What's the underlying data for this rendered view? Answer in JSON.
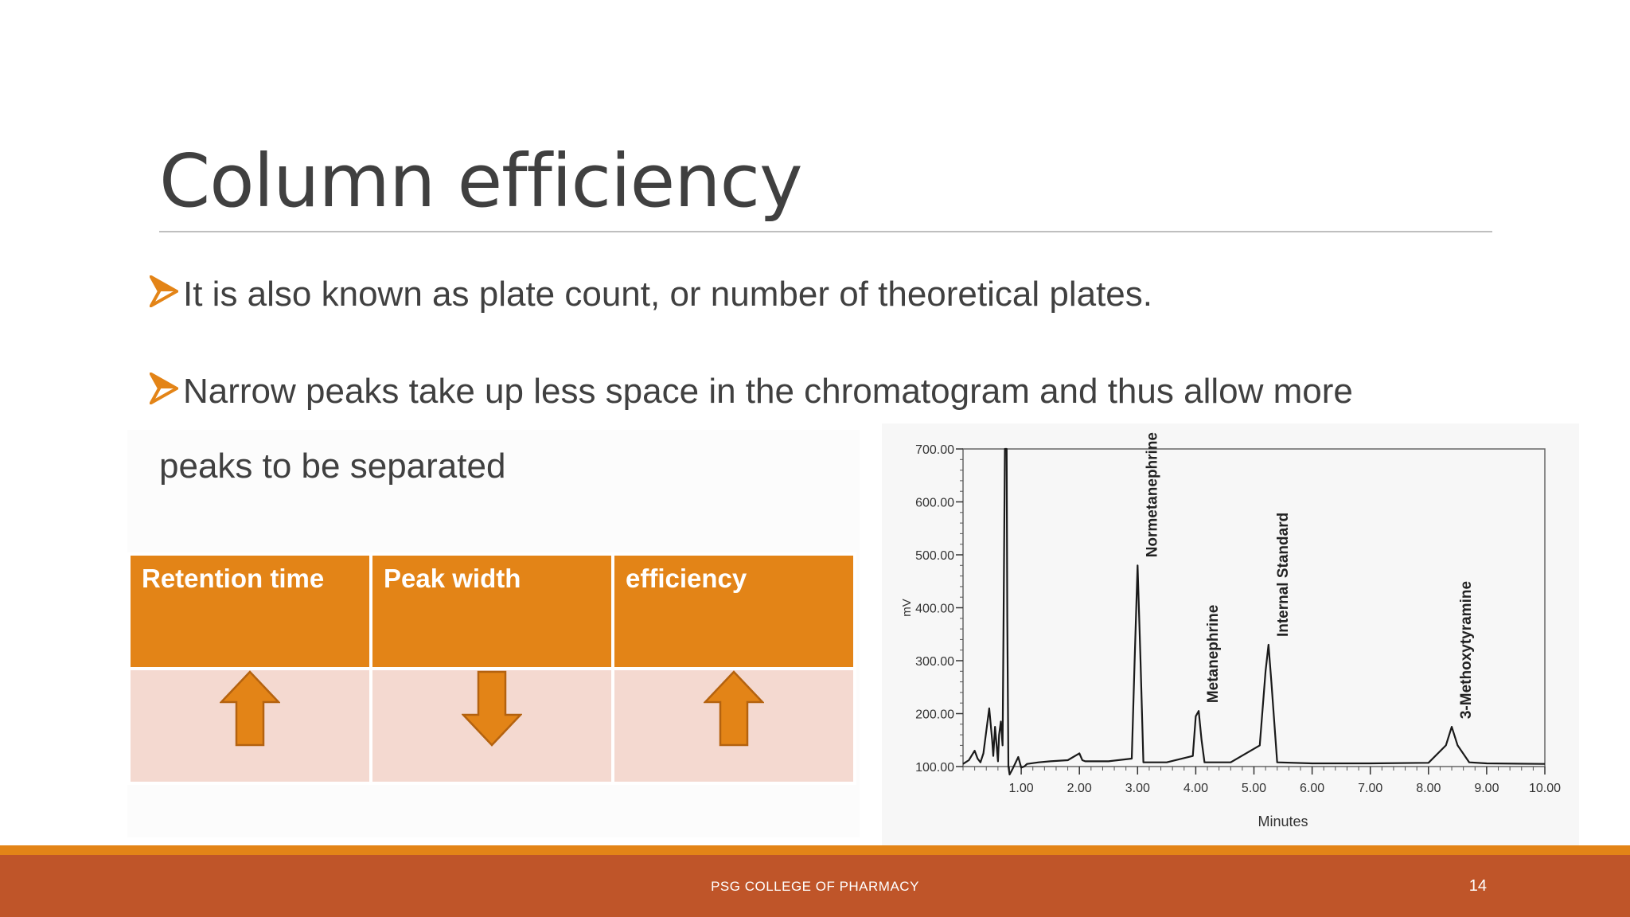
{
  "slide": {
    "title": "Column efficiency",
    "bullets": [
      "It is also known as plate count, or number of theoretical plates.",
      "Narrow peaks take up less space in the chromatogram and thus allow more"
    ],
    "bullet_continuation": "peaks to be separated",
    "accent_color": "#e38417",
    "footer_color": "#bf5529"
  },
  "table": {
    "headers": [
      "Retention time",
      "Peak width",
      "efficiency"
    ],
    "directions": [
      "up-arrow-icon",
      "down-arrow-icon",
      "up-arrow-icon"
    ]
  },
  "chart_data": {
    "type": "line",
    "xlabel": "Minutes",
    "ylabel": "mV",
    "xlim": [
      0,
      10
    ],
    "ylim": [
      100,
      700
    ],
    "x_ticks": [
      "1.00",
      "2.00",
      "3.00",
      "4.00",
      "5.00",
      "6.00",
      "7.00",
      "8.00",
      "9.00",
      "10.00"
    ],
    "y_ticks": [
      "100.00",
      "200.00",
      "300.00",
      "400.00",
      "500.00",
      "600.00",
      "700.00"
    ],
    "peak_labels": [
      {
        "label": "Normetanephrine",
        "x": 3.0,
        "y": 480
      },
      {
        "label": "Metanephrine",
        "x": 4.05,
        "y": 205
      },
      {
        "label": "Internal Standard",
        "x": 5.25,
        "y": 330
      },
      {
        "label": "3-Methoxytyramine",
        "x": 8.4,
        "y": 175
      }
    ],
    "series": [
      {
        "x": [
          0,
          0.1,
          0.2,
          0.25,
          0.3,
          0.35,
          0.45,
          0.5,
          0.52,
          0.55,
          0.6,
          0.62,
          0.65,
          0.68,
          0.72,
          0.74,
          0.75,
          0.76,
          0.78,
          0.8,
          0.85,
          0.95,
          1.0,
          1.05,
          1.1,
          1.3,
          1.5,
          1.8,
          2.0,
          2.05,
          2.1,
          2.5,
          2.9,
          2.95,
          3.0,
          3.05,
          3.1,
          3.5,
          3.95,
          4.0,
          4.05,
          4.1,
          4.15,
          4.6,
          5.1,
          5.2,
          5.25,
          5.3,
          5.4,
          6.0,
          7.0,
          8.0,
          8.3,
          8.4,
          8.5,
          8.7,
          9.0,
          10.0
        ],
        "y": [
          105,
          112,
          130,
          115,
          108,
          125,
          210,
          150,
          120,
          175,
          110,
          160,
          185,
          140,
          700,
          700,
          700,
          380,
          100,
          85,
          95,
          118,
          98,
          100,
          105,
          108,
          110,
          112,
          125,
          112,
          110,
          110,
          115,
          300,
          480,
          300,
          108,
          108,
          120,
          195,
          205,
          150,
          108,
          108,
          140,
          280,
          330,
          260,
          108,
          106,
          106,
          107,
          140,
          175,
          140,
          108,
          106,
          105
        ]
      }
    ]
  },
  "footer": {
    "college": "PSG COLLEGE OF PHARMACY",
    "page": "14"
  }
}
